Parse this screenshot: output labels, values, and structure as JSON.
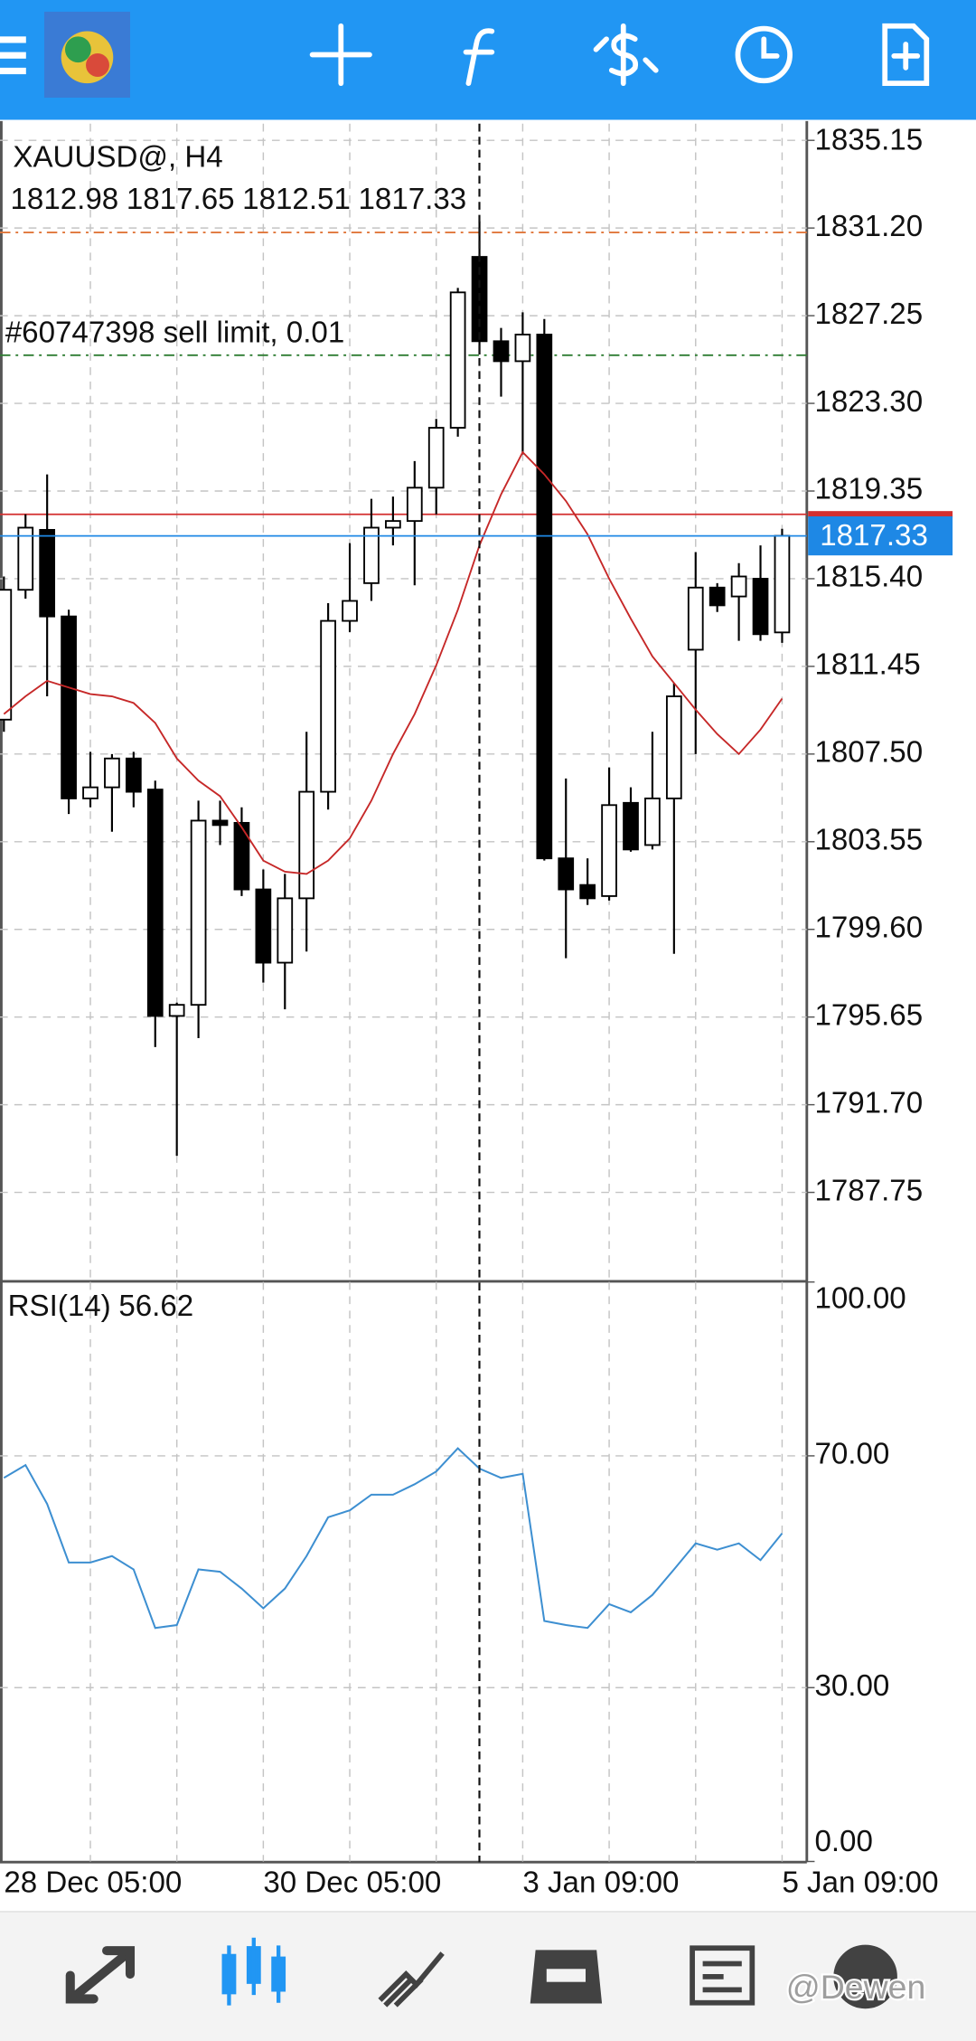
{
  "chart_data": [
    {
      "type": "candlestick",
      "title": "XAUUSD@, H4",
      "categories": [
        "28 Dec 05:00",
        null,
        null,
        null,
        null,
        null,
        null,
        null,
        null,
        null,
        null,
        null,
        "30 Dec 05:00",
        null,
        null,
        null,
        null,
        null,
        null,
        null,
        null,
        null,
        null,
        null,
        "3 Jan 09:00",
        null,
        null,
        null,
        null,
        null,
        null,
        null,
        null,
        null,
        null,
        null,
        "5 Jan 09:00"
      ],
      "open": [
        1809.05,
        1814.9,
        1817.6,
        1813.7,
        1805.5,
        1806.0,
        1807.3,
        1805.9,
        1795.7,
        1796.2,
        1804.5,
        1804.4,
        1801.4,
        1798.1,
        1801.0,
        1805.8,
        1813.5,
        1815.2,
        1817.7,
        1818.0,
        1819.5,
        1822.2,
        1829.9,
        1826.1,
        1825.2,
        1826.4,
        1802.8,
        1801.6,
        1801.1,
        1805.3,
        1803.4,
        1805.5,
        1812.2,
        1815.0,
        1814.6,
        1815.4,
        1812.98
      ],
      "high": [
        1815.5,
        1818.3,
        1820.1,
        1814.0,
        1807.6,
        1807.5,
        1807.6,
        1806.3,
        1796.3,
        1805.4,
        1805.4,
        1805.1,
        1802.3,
        1802.1,
        1808.5,
        1814.3,
        1817.0,
        1819.0,
        1819.1,
        1820.7,
        1822.6,
        1828.5,
        1831.5,
        1826.7,
        1827.4,
        1827.1,
        1806.4,
        1802.8,
        1806.9,
        1806.0,
        1808.5,
        1810.7,
        1816.6,
        1815.2,
        1816.1,
        1816.9,
        1817.65
      ],
      "low": [
        1808.5,
        1814.5,
        1810.1,
        1804.8,
        1805.1,
        1804.0,
        1805.1,
        1794.3,
        1789.4,
        1794.7,
        1803.4,
        1801.1,
        1797.2,
        1796.0,
        1798.6,
        1805.0,
        1813.0,
        1814.4,
        1816.9,
        1815.1,
        1818.3,
        1821.8,
        1825.5,
        1823.6,
        1821.0,
        1802.7,
        1798.3,
        1800.7,
        1800.9,
        1803.1,
        1803.2,
        1798.5,
        1807.5,
        1813.9,
        1812.6,
        1812.6,
        1812.51
      ],
      "close": [
        1814.9,
        1817.7,
        1813.7,
        1805.5,
        1806.0,
        1807.3,
        1805.8,
        1795.7,
        1796.2,
        1804.5,
        1804.3,
        1801.4,
        1798.1,
        1801.0,
        1805.8,
        1813.5,
        1814.4,
        1817.7,
        1818.0,
        1819.5,
        1822.2,
        1828.3,
        1826.1,
        1825.2,
        1826.4,
        1802.8,
        1801.4,
        1801.0,
        1805.2,
        1803.2,
        1805.5,
        1810.1,
        1815.0,
        1814.2,
        1815.5,
        1812.9,
        1817.33
      ],
      "up_color": "#ffffff",
      "down_color": "#000000",
      "ma": {
        "color": "#c62828",
        "values": [
          1809.3,
          1810.1,
          1810.8,
          1810.5,
          1810.2,
          1810.1,
          1809.8,
          1808.9,
          1807.3,
          1806.3,
          1805.6,
          1804.2,
          1802.7,
          1802.2,
          1802.1,
          1802.7,
          1803.7,
          1805.4,
          1807.5,
          1809.3,
          1811.5,
          1814.0,
          1816.9,
          1819.2,
          1821.1,
          1820.1,
          1818.9,
          1817.4,
          1815.4,
          1813.6,
          1811.9,
          1810.7,
          1809.5,
          1808.4,
          1807.5,
          1808.6,
          1810.0
        ]
      },
      "order_lines": [
        {
          "value": 1831.0,
          "color": "#e0763a"
        },
        {
          "value": 1825.47,
          "label": "#60747398 sell limit, 0.01",
          "color": "#2e7d32"
        }
      ],
      "ask": 1818.3,
      "ask_color": "#d32f2f",
      "bid_color": "#1e88e5",
      "ylim": [
        1783.8,
        1835.9
      ],
      "yticks": [
        {
          "value": 1835.15,
          "label": "1835.15"
        },
        {
          "value": 1831.2,
          "label": "1831.20"
        },
        {
          "value": 1827.25,
          "label": "1827.25"
        },
        {
          "value": 1823.3,
          "label": "1823.30"
        },
        {
          "value": 1819.35,
          "label": "1819.35"
        },
        {
          "value": 1815.4,
          "label": "1815.40"
        },
        {
          "value": 1811.45,
          "label": "1811.45"
        },
        {
          "value": 1807.5,
          "label": "1807.50"
        },
        {
          "value": 1803.55,
          "label": "1803.55"
        },
        {
          "value": 1799.6,
          "label": "1799.60"
        },
        {
          "value": 1795.65,
          "label": "1795.65"
        },
        {
          "value": 1791.7,
          "label": "1791.70"
        },
        {
          "value": 1787.75,
          "label": "1787.75"
        }
      ],
      "grid": true
    },
    {
      "type": "line",
      "series": [
        {
          "name": "RSI(14)",
          "color": "#3d8fd1",
          "values": [
            66.2,
            68.4,
            61.7,
            51.6,
            51.6,
            52.7,
            50.4,
            40.3,
            40.8,
            50.4,
            50.0,
            47.1,
            43.7,
            47.1,
            52.7,
            59.4,
            60.6,
            63.3,
            63.3,
            65.1,
            67.3,
            71.3,
            67.8,
            66.2,
            66.9,
            41.5,
            40.8,
            40.3,
            44.4,
            43.0,
            46.0,
            50.4,
            54.9,
            53.8,
            54.9,
            52.0,
            56.62
          ]
        }
      ],
      "ylim": [
        0,
        100
      ],
      "yticks": [
        {
          "value": 100,
          "label": "100.00"
        },
        {
          "value": 70,
          "label": "70.00"
        },
        {
          "value": 30,
          "label": "30.00"
        },
        {
          "value": 0,
          "label": "0.00"
        }
      ],
      "grid": true
    }
  ],
  "watermark": "@Dewen"
}
